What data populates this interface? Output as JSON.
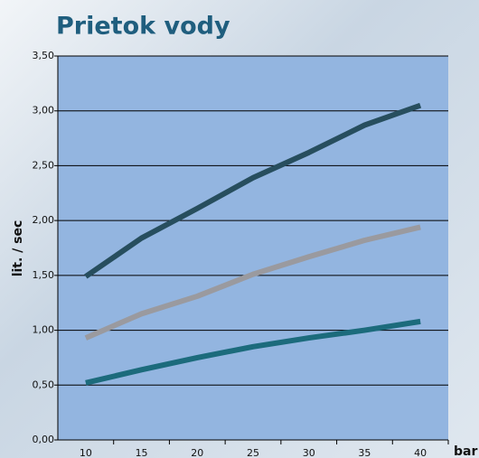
{
  "chart_data": {
    "type": "line",
    "title": "Prietok vody",
    "y_label": "lit. / sec",
    "x_label": "bar",
    "categories": [
      "10",
      "15",
      "20",
      "25",
      "30",
      "35",
      "40"
    ],
    "series": [
      {
        "color": "#274e5e",
        "values": [
          1.49,
          1.84,
          2.11,
          2.39,
          2.62,
          2.87,
          3.05
        ]
      },
      {
        "color": "#9a9a9f",
        "values": [
          0.93,
          1.15,
          1.31,
          1.51,
          1.67,
          1.82,
          1.94
        ]
      },
      {
        "color": "#1c6b7c",
        "values": [
          0.52,
          0.64,
          0.75,
          0.85,
          0.93,
          1.0,
          1.08
        ]
      }
    ],
    "ylim": [
      0,
      3.5
    ],
    "yticks": [
      {
        "value": 0,
        "label": "0,00"
      },
      {
        "value": 0.5,
        "label": "0,50"
      },
      {
        "value": 1,
        "label": "1,00"
      },
      {
        "value": 1.5,
        "label": "1,50"
      },
      {
        "value": 2,
        "label": "2,00"
      },
      {
        "value": 2.5,
        "label": "2,50"
      },
      {
        "value": 3,
        "label": "3,00"
      },
      {
        "value": 3.5,
        "label": "3,50"
      }
    ],
    "grid": true,
    "plot_color": "#93b5e0"
  }
}
